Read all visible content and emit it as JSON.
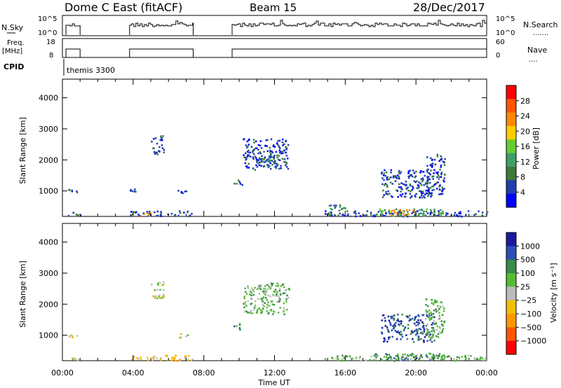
{
  "header": {
    "site": "Dome C East (fitACF)",
    "beam": "Beam 15",
    "date": "28/Dec/2017"
  },
  "params": {
    "nsky_label": "N.Sky",
    "nsky_ticks": [
      "10^5",
      "10^0"
    ],
    "nsearch_label": "N.Search",
    "nsearch_ticks": [
      "10^5",
      "10^0"
    ],
    "freq_label": [
      "Freq.",
      "[MHz]"
    ],
    "freq_ticks": [
      "18",
      "8"
    ],
    "nave_label": "Nave",
    "nave_ticks": [
      "60",
      "0"
    ],
    "cpid_label": "CPID",
    "cpid_value": "themis 3300"
  },
  "colors": {
    "power": [
      "#0000ff",
      "#1f3fb0",
      "#3b7a3b",
      "#3f9f6a",
      "#66cc33",
      "#ffcc00",
      "#ff8800",
      "#ff5500",
      "#ff0000"
    ],
    "velocity": [
      "#1a1aa0",
      "#2b4fb5",
      "#3a8a4a",
      "#55bb33",
      "#bbbbbb",
      "#f0c000",
      "#ff9900",
      "#ff5500",
      "#ff0000"
    ]
  },
  "chart_data": [
    {
      "type": "heatmap",
      "name": "power",
      "ylabel": "Slant Range [km]",
      "ylim": [
        180,
        4600
      ],
      "yticks": [
        "1000",
        "2000",
        "3000",
        "4000"
      ],
      "xlim": [
        0,
        24
      ],
      "colorbar_label": "Power [dB]",
      "colorbar_ticks": [
        "4",
        "8",
        "12",
        "16",
        "20",
        "24",
        "28"
      ],
      "clusters": [
        {
          "x": [
            0.2,
            1.0
          ],
          "y": [
            200,
            330
          ],
          "level": 1
        },
        {
          "x": [
            0.3,
            0.8
          ],
          "y": [
            950,
            1070
          ],
          "level": 1
        },
        {
          "x": [
            3.8,
            7.4
          ],
          "y": [
            200,
            380
          ],
          "level": 1
        },
        {
          "x": [
            4.4,
            5.0
          ],
          "y": [
            200,
            350
          ],
          "level": 6
        },
        {
          "x": [
            3.8,
            4.1
          ],
          "y": [
            950,
            1080
          ],
          "level": 1
        },
        {
          "x": [
            6.5,
            7.1
          ],
          "y": [
            940,
            1080
          ],
          "level": 1
        },
        {
          "x": [
            5.0,
            5.7
          ],
          "y": [
            2200,
            2800
          ],
          "level": 1
        },
        {
          "x": [
            9.6,
            10.2
          ],
          "y": [
            1200,
            1400
          ],
          "level": 1
        },
        {
          "x": [
            10.2,
            12.8
          ],
          "y": [
            1700,
            2700
          ],
          "level": 1
        },
        {
          "x": [
            11.0,
            12.2
          ],
          "y": [
            1800,
            2100
          ],
          "level": 2
        },
        {
          "x": [
            14.8,
            24.0
          ],
          "y": [
            200,
            380
          ],
          "level": 1
        },
        {
          "x": [
            15.0,
            16.0
          ],
          "y": [
            220,
            600
          ],
          "level": 2
        },
        {
          "x": [
            17.5,
            21.5
          ],
          "y": [
            220,
            440
          ],
          "level": 3
        },
        {
          "x": [
            18.5,
            20.0
          ],
          "y": [
            240,
            420
          ],
          "level": 6
        },
        {
          "x": [
            18.0,
            21.0
          ],
          "y": [
            800,
            1700
          ],
          "level": 1
        },
        {
          "x": [
            20.5,
            21.6
          ],
          "y": [
            900,
            2200
          ],
          "level": 1
        }
      ]
    },
    {
      "type": "heatmap",
      "name": "velocity",
      "ylabel": "Slant Range [km]",
      "ylim": [
        180,
        4600
      ],
      "yticks": [
        "1000",
        "2000",
        "3000",
        "4000"
      ],
      "xlim": [
        0,
        24
      ],
      "xticks": [
        "00:00",
        "04:00",
        "08:00",
        "12:00",
        "16:00",
        "20:00",
        "00:00"
      ],
      "xlabel": "Time UT",
      "colorbar_label": "Velocity [m s⁻¹]",
      "colorbar_ticks": [
        "1000",
        "500",
        "100",
        "25",
        "−25",
        "−100",
        "−500",
        "−1000"
      ],
      "clusters": [
        {
          "x": [
            0.2,
            1.0
          ],
          "y": [
            200,
            330
          ],
          "level": 4
        },
        {
          "x": [
            0.3,
            0.8
          ],
          "y": [
            950,
            1070
          ],
          "level": 4
        },
        {
          "x": [
            3.8,
            7.4
          ],
          "y": [
            200,
            380
          ],
          "level": 5
        },
        {
          "x": [
            6.5,
            7.1
          ],
          "y": [
            940,
            1080
          ],
          "level": 4
        },
        {
          "x": [
            5.0,
            5.7
          ],
          "y": [
            2200,
            2800
          ],
          "level": 4
        },
        {
          "x": [
            9.6,
            10.2
          ],
          "y": [
            1200,
            1400
          ],
          "level": 2
        },
        {
          "x": [
            10.2,
            12.8
          ],
          "y": [
            1700,
            2700
          ],
          "level": 3
        },
        {
          "x": [
            14.8,
            24.0
          ],
          "y": [
            200,
            380
          ],
          "level": 3
        },
        {
          "x": [
            17.5,
            21.5
          ],
          "y": [
            220,
            440
          ],
          "level": 2
        },
        {
          "x": [
            18.0,
            21.0
          ],
          "y": [
            800,
            1700
          ],
          "level": 1
        },
        {
          "x": [
            20.5,
            21.6
          ],
          "y": [
            900,
            2200
          ],
          "level": 3
        }
      ]
    }
  ]
}
